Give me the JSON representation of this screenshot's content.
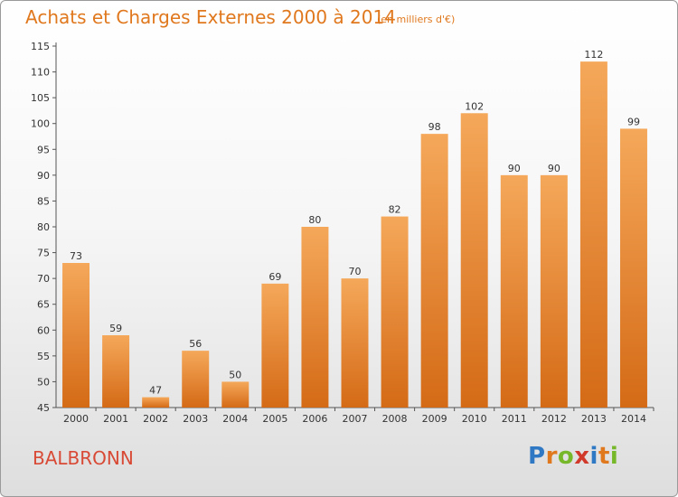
{
  "title": "Achats et Charges Externes 2000 à 2014",
  "unit_label": "(en milliers d'€)",
  "city": "BALBRONN",
  "brand": {
    "letters": [
      "P",
      "r",
      "o",
      "x",
      "i",
      "t",
      "i"
    ],
    "colors": [
      "#2f78c4",
      "#e0781e",
      "#76b82a",
      "#d13a2b",
      "#2f78c4",
      "#e0781e",
      "#76b82a"
    ]
  },
  "colors": {
    "bar_light": "#f5a85a",
    "bar_dark": "#d46a16",
    "title": "#e0781e",
    "city": "#d84a35"
  },
  "chart_data": {
    "type": "bar",
    "title": "Achats et Charges Externes 2000 à 2014",
    "subtitle": "(en milliers d'€)",
    "xlabel": "",
    "ylabel": "",
    "categories": [
      "2000",
      "2001",
      "2002",
      "2003",
      "2004",
      "2005",
      "2006",
      "2007",
      "2008",
      "2009",
      "2010",
      "2011",
      "2012",
      "2013",
      "2014"
    ],
    "values": [
      73,
      59,
      47,
      56,
      50,
      69,
      80,
      70,
      82,
      98,
      102,
      90,
      90,
      112,
      99
    ],
    "ylim": [
      45,
      115
    ],
    "yticks": [
      45,
      50,
      55,
      60,
      65,
      70,
      75,
      80,
      85,
      90,
      95,
      100,
      105,
      110,
      115
    ],
    "grid": false,
    "legend": "none",
    "data_labels": true
  }
}
